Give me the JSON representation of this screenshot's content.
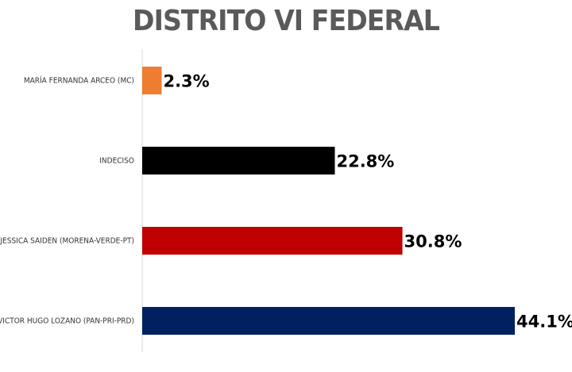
{
  "chart_data": {
    "type": "bar",
    "orientation": "horizontal",
    "title": "DISTRITO VI FEDERAL",
    "categories": [
      "MARÍA FERNANDA ARCEO  (MC)",
      "INDECISO",
      "JESSICA SAIDEN (MORENA-VERDE-PT)",
      "VICTOR HUGO LOZANO (PAN-PRI-PRD)"
    ],
    "values": [
      2.3,
      22.8,
      30.8,
      44.1
    ],
    "value_labels": [
      "2.3%",
      "22.8%",
      "30.8%",
      "44.1%"
    ],
    "colors": [
      "#ED7D31",
      "#000000",
      "#C00000",
      "#002060"
    ],
    "xlim": [
      0,
      44.1
    ],
    "grid": false,
    "legend": "none"
  }
}
